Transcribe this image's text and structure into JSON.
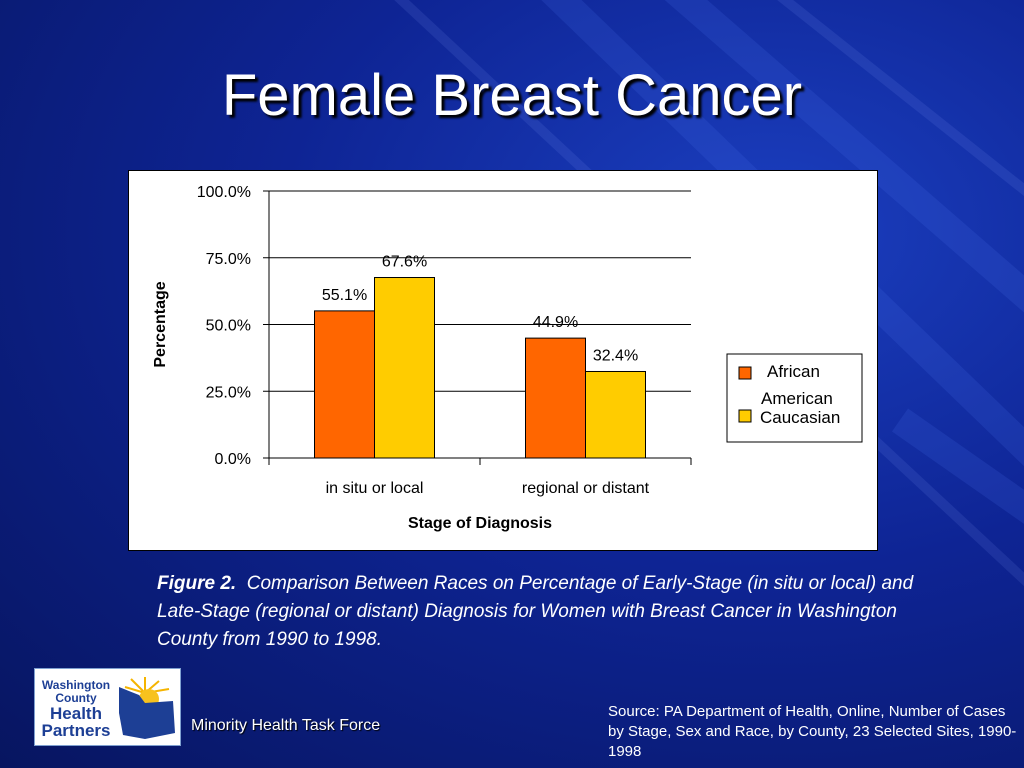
{
  "slide": {
    "title": "Female Breast Cancer"
  },
  "chart_data": {
    "type": "bar",
    "categories": [
      "in situ or local",
      "regional or distant"
    ],
    "series": [
      {
        "name": "African American",
        "values": [
          55.1,
          44.9
        ],
        "color": "#ff6600"
      },
      {
        "name": "Caucasian",
        "values": [
          67.6,
          32.4
        ],
        "color": "#ffcc00"
      }
    ],
    "data_labels": [
      [
        "55.1%",
        "44.9%"
      ],
      [
        "67.6%",
        "32.4%"
      ]
    ],
    "xlabel": "Stage of Diagnosis",
    "ylabel": "Percentage",
    "ylim": [
      0,
      100
    ],
    "yticks": [
      0,
      25,
      50,
      75,
      100
    ],
    "ytick_labels": [
      "0.0%",
      "25.0%",
      "50.0%",
      "75.0%",
      "100.0%"
    ],
    "grid": true,
    "legend_position": "right"
  },
  "caption": {
    "label": "Figure 2.",
    "text": "Comparison Between Races on Percentage of Early-Stage (in situ or local) and Late-Stage (regional or distant) Diagnosis for Women with Breast Cancer in Washington County  from 1990 to 1998."
  },
  "logo": {
    "line1": "Washington",
    "line2": "County",
    "line3": "Health",
    "line4": "Partners"
  },
  "footer": {
    "organization": "Minority Health Task Force",
    "source": "Source: PA Department of Health, Online, Number of Cases by Stage, Sex and Race, by County, 23 Selected Sites, 1990-1998"
  }
}
